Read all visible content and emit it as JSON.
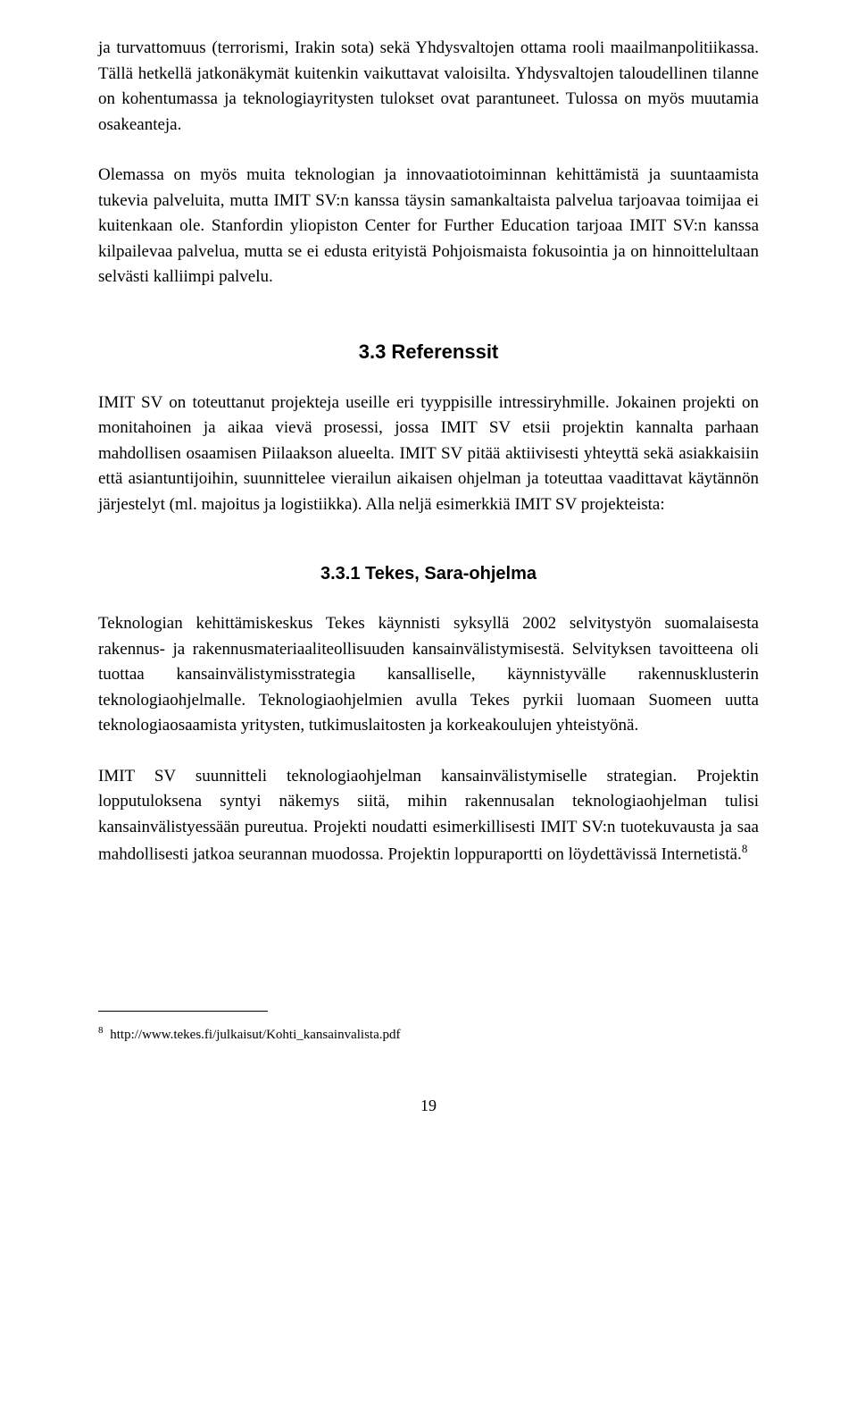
{
  "paragraphs": {
    "p1": "ja turvattomuus (terrorismi, Irakin sota) sekä Yhdysvaltojen ottama rooli maailmanpolitiikassa. Tällä hetkellä jatkonäkymät kuitenkin vaikuttavat valoisilta. Yhdysvaltojen taloudellinen tilanne on kohentumassa ja teknologiayritysten tulokset ovat parantuneet. Tulossa on myös muutamia osakeanteja.",
    "p2": "Olemassa on myös muita teknologian ja innovaatiotoiminnan kehittämistä ja suuntaamista tukevia palveluita, mutta IMIT SV:n kanssa täysin samankaltaista palvelua tarjoavaa toimijaa ei kuitenkaan ole. Stanfordin yliopiston Center for Further Education tarjoaa IMIT SV:n kanssa kilpailevaa palvelua, mutta se ei edusta erityistä Pohjoismaista fokusointia ja on hinnoittelultaan selvästi kalliimpi palvelu.",
    "p3": "IMIT SV on toteuttanut projekteja useille eri tyyppisille intressiryhmille. Jokainen projekti on monitahoinen ja aikaa vievä prosessi, jossa IMIT SV etsii projektin kannalta parhaan mahdollisen osaamisen Piilaakson alueelta. IMIT SV pitää aktiivisesti yhteyttä sekä asiakkaisiin että asiantuntijoihin, suunnittelee vierailun aikaisen ohjelman ja toteuttaa vaadittavat käytännön järjestelyt (ml. majoitus ja logistiikka). Alla neljä esimerkkiä IMIT SV projekteista:",
    "p4": "Teknologian kehittämiskeskus Tekes käynnisti syksyllä 2002 selvitystyön suomalaisesta rakennus- ja rakennusmateriaaliteollisuuden kansainvälistymisestä. Selvityksen tavoitteena oli tuottaa kansainvälistymisstrategia kansalliselle, käynnistyvälle rakennusklusterin teknologiaohjelmalle. Teknologiaohjelmien avulla Tekes pyrkii luomaan Suomeen uutta teknologiaosaamista yritysten, tutkimuslaitosten ja korkeakoulujen yhteistyönä.",
    "p5_part1": "IMIT SV suunnitteli teknologiaohjelman kansainvälistymiselle strategian. Projektin lopputuloksena syntyi näkemys siitä, mihin rakennusalan teknologiaohjelman tulisi kansainvälistyessään pureutua. Projekti noudatti esimerkillisesti IMIT SV:n tuotekuvausta ja saa mahdollisesti jatkoa seurannan muodossa. Projektin loppuraportti on löydettävissä Internetistä.",
    "p5_ref": "8"
  },
  "headings": {
    "h33": "3.3  Referenssit",
    "h331": "3.3.1  Tekes, Sara-ohjelma"
  },
  "footnote": {
    "num": "8",
    "text": " http://www.tekes.fi/julkaisut/Kohti_kansainvalista.pdf"
  },
  "page_number": "19"
}
